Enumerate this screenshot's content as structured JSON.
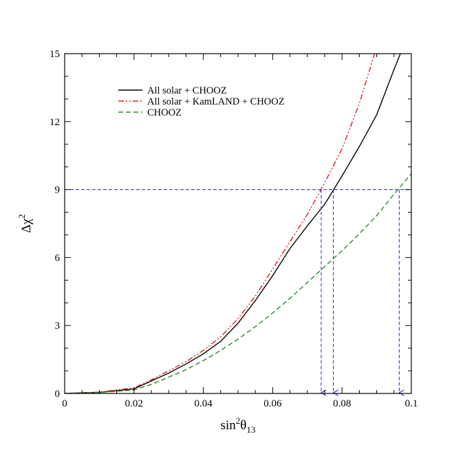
{
  "chart_data": {
    "type": "line",
    "xlim": [
      0,
      0.1
    ],
    "ylim": [
      0,
      15
    ],
    "x_ticks": [
      {
        "value": 0,
        "label": "0"
      },
      {
        "value": 0.02,
        "label": "0.02"
      },
      {
        "value": 0.04,
        "label": "0.04"
      },
      {
        "value": 0.06,
        "label": "0.06"
      },
      {
        "value": 0.08,
        "label": "0.08"
      },
      {
        "value": 0.1,
        "label": "0.1"
      }
    ],
    "y_ticks": [
      {
        "value": 0,
        "label": "0"
      },
      {
        "value": 3,
        "label": "3"
      },
      {
        "value": 6,
        "label": "6"
      },
      {
        "value": 9,
        "label": "9"
      },
      {
        "value": 12,
        "label": "12"
      },
      {
        "value": 15,
        "label": "15"
      }
    ],
    "xlabel": {
      "base": "sin",
      "sup": "2",
      "symbol": "θ",
      "sub": "13"
    },
    "ylabel": {
      "base": "Δχ",
      "sup": "2"
    },
    "grid": false,
    "legend_position": "top-left",
    "series": [
      {
        "name": "All solar + CHOOZ",
        "color": "#000000",
        "style": "solid",
        "x": [
          0,
          0.01,
          0.02,
          0.025,
          0.03,
          0.035,
          0.04,
          0.045,
          0.05,
          0.055,
          0.06,
          0.065,
          0.07,
          0.075,
          0.08,
          0.085,
          0.09,
          0.095,
          0.1
        ],
        "y": [
          0,
          0.05,
          0.2,
          0.55,
          0.9,
          1.3,
          1.75,
          2.3,
          3.1,
          4.1,
          5.2,
          6.4,
          7.4,
          8.35,
          9.6,
          10.9,
          12.3,
          14.3,
          16.2
        ]
      },
      {
        "name": "All solar + KamLAND + CHOOZ",
        "color": "#e41a1c",
        "style": "dashdotdot",
        "x": [
          0,
          0.01,
          0.02,
          0.025,
          0.03,
          0.035,
          0.04,
          0.045,
          0.05,
          0.055,
          0.06,
          0.065,
          0.07,
          0.075,
          0.08,
          0.085,
          0.09
        ],
        "y": [
          0,
          0.06,
          0.25,
          0.6,
          1.0,
          1.4,
          1.9,
          2.5,
          3.3,
          4.3,
          5.5,
          6.7,
          7.9,
          9.3,
          10.8,
          12.8,
          15.3
        ]
      },
      {
        "name": "CHOOZ",
        "color": "#2a8a2a",
        "style": "dashed",
        "x": [
          0,
          0.01,
          0.02,
          0.025,
          0.03,
          0.035,
          0.04,
          0.045,
          0.05,
          0.055,
          0.06,
          0.065,
          0.07,
          0.075,
          0.08,
          0.085,
          0.09,
          0.095,
          0.1
        ],
        "y": [
          0,
          0.04,
          0.15,
          0.4,
          0.72,
          1.05,
          1.45,
          1.9,
          2.4,
          2.95,
          3.55,
          4.2,
          4.9,
          5.6,
          6.3,
          7.05,
          7.85,
          8.8,
          9.7
        ]
      }
    ],
    "reference_line": {
      "y": 9,
      "color": "#2222cc",
      "style": "dashed"
    },
    "annotations": [
      {
        "type": "drop-arrow",
        "x": 0.074,
        "y_from": 9,
        "color": "#2222cc"
      },
      {
        "type": "drop-arrow",
        "x": 0.0775,
        "y_from": 9,
        "color": "#2222cc"
      },
      {
        "type": "drop-arrow",
        "x": 0.0965,
        "y_from": 9,
        "color": "#2222cc"
      }
    ]
  }
}
